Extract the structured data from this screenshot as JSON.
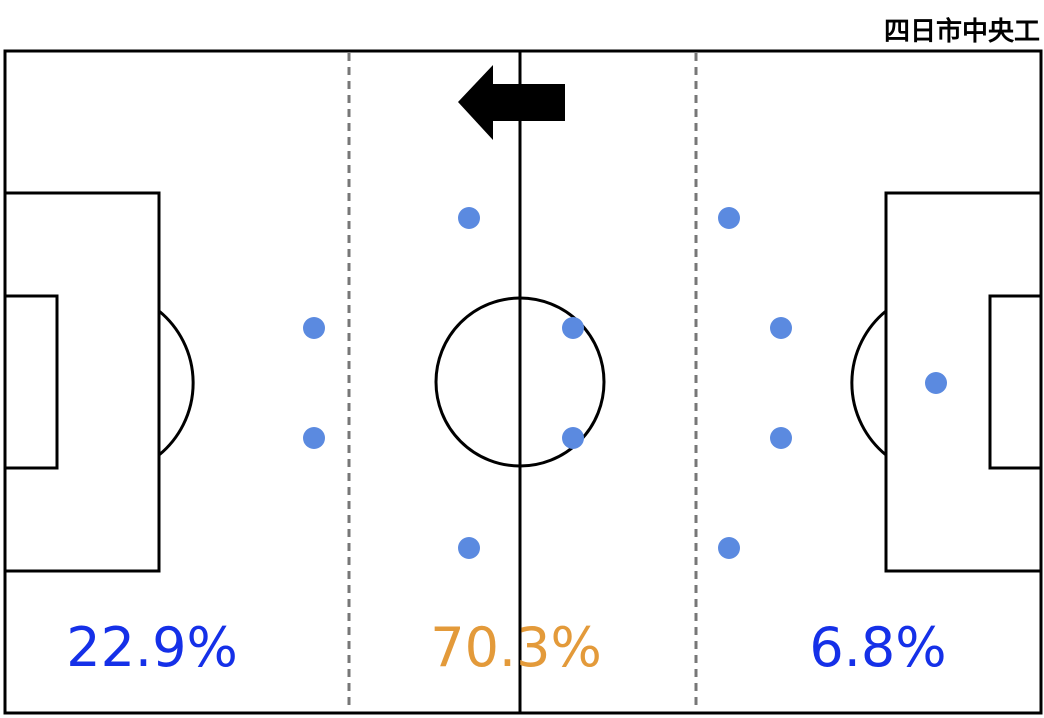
{
  "team": "四日市中央工",
  "zones": [
    {
      "label": "22.9%",
      "color": "#1530e8"
    },
    {
      "label": "70.3%",
      "color": "#e39a3a"
    },
    {
      "label": "6.8%",
      "color": "#1530e8"
    }
  ]
}
